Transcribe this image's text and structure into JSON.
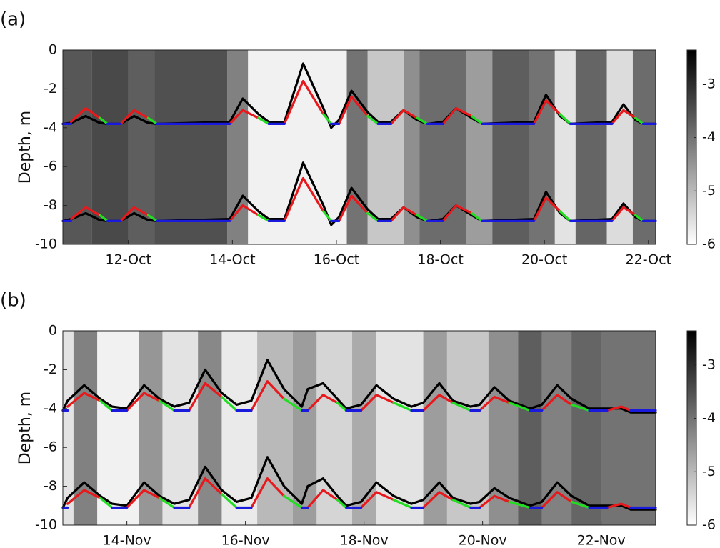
{
  "chart_data": [
    {
      "type": "line",
      "panel_label": "(a)",
      "ylabel": "Depth, m",
      "xlim": [
        10.74,
        22.14
      ],
      "xticks": [
        {
          "value": 12,
          "label": "12-Oct"
        },
        {
          "value": 14,
          "label": "14-Oct"
        },
        {
          "value": 16,
          "label": "16-Oct"
        },
        {
          "value": 18,
          "label": "18-Oct"
        },
        {
          "value": 20,
          "label": "20-Oct"
        },
        {
          "value": 22,
          "label": "22-Oct"
        }
      ],
      "ylim": [
        -10,
        0
      ],
      "yticks": [
        0,
        -2,
        -4,
        -6,
        -8,
        -10
      ],
      "clim": [
        -6,
        -2.36
      ],
      "cticks": [
        -3,
        -4,
        -5,
        -6
      ],
      "field": {
        "bins": [
          10.74,
          11.3,
          12.0,
          12.5,
          13.9,
          14.3,
          16.2,
          16.6,
          17.3,
          17.6,
          18.5,
          19.0,
          19.7,
          20.2,
          20.6,
          21.2,
          21.7,
          22.14
        ],
        "values": [
          -3.6,
          -3.4,
          -3.7,
          -3.5,
          -4.2,
          -5.8,
          -4.0,
          -5.2,
          -4.4,
          -3.9,
          -4.6,
          -3.7,
          -4.0,
          -5.6,
          -3.8,
          -5.5,
          -3.9
        ]
      },
      "x": [
        10.74,
        10.9,
        11.18,
        11.45,
        11.6,
        11.85,
        12.11,
        12.38,
        12.55,
        13.95,
        14.2,
        14.5,
        14.7,
        15.0,
        15.36,
        15.75,
        15.9,
        16.05,
        16.29,
        16.6,
        16.8,
        17.05,
        17.29,
        17.55,
        17.75,
        18.05,
        18.3,
        18.6,
        18.8,
        19.8,
        20.03,
        20.3,
        20.5,
        21.3,
        21.52,
        21.75,
        21.9,
        22.14
      ],
      "series": [
        {
          "color": "#000000",
          "values": [
            -3.8,
            -3.75,
            -3.4,
            -3.75,
            -3.8,
            -3.8,
            -3.4,
            -3.75,
            -3.8,
            -3.7,
            -2.5,
            -3.3,
            -3.7,
            -3.7,
            -0.7,
            -3.0,
            -4.0,
            -3.6,
            -2.1,
            -3.2,
            -3.7,
            -3.7,
            -3.1,
            -3.6,
            -3.8,
            -3.7,
            -3.0,
            -3.5,
            -3.8,
            -3.7,
            -2.3,
            -3.4,
            -3.8,
            -3.7,
            -2.8,
            -3.6,
            -3.8,
            -3.8
          ]
        },
        {
          "color": "#000000",
          "values": [
            -8.8,
            -8.7,
            -8.4,
            -8.75,
            -8.8,
            -8.8,
            -8.4,
            -8.75,
            -8.8,
            -8.7,
            -7.5,
            -8.3,
            -8.7,
            -8.7,
            -5.8,
            -8.0,
            -9.0,
            -8.6,
            -7.1,
            -8.2,
            -8.7,
            -8.7,
            -8.1,
            -8.6,
            -8.8,
            -8.7,
            -8.0,
            -8.5,
            -8.8,
            -8.7,
            -7.3,
            -8.4,
            -8.8,
            -8.7,
            -7.9,
            -8.6,
            -8.8,
            -8.8
          ]
        },
        {
          "color": "#e8191c",
          "values": [
            null,
            -3.7,
            -3.0,
            -3.5,
            null,
            -3.8,
            -3.1,
            -3.5,
            null,
            -3.8,
            -3.1,
            -3.5,
            null,
            -3.8,
            -1.6,
            -3.3,
            null,
            -3.8,
            -2.4,
            -3.4,
            null,
            -3.8,
            -3.1,
            -3.5,
            null,
            -3.8,
            -3.0,
            -3.4,
            null,
            -3.8,
            -2.6,
            -3.3,
            null,
            -3.8,
            -3.1,
            -3.5,
            null,
            null
          ]
        },
        {
          "color": "#e8191c",
          "values": [
            null,
            -8.7,
            -8.1,
            -8.5,
            null,
            -8.8,
            -8.1,
            -8.5,
            null,
            -8.8,
            -8.0,
            -8.5,
            null,
            -8.8,
            -6.6,
            -8.3,
            null,
            -8.8,
            -7.5,
            -8.4,
            null,
            -8.8,
            -8.1,
            -8.5,
            null,
            -8.8,
            -8.0,
            -8.4,
            null,
            -8.8,
            -7.6,
            -8.3,
            null,
            -8.8,
            -8.1,
            -8.5,
            null,
            null
          ]
        },
        {
          "color": "#22dd22",
          "values": [
            null,
            null,
            null,
            -3.5,
            -3.8,
            null,
            null,
            -3.5,
            -3.8,
            null,
            null,
            -3.5,
            -3.8,
            null,
            null,
            -3.3,
            -3.8,
            null,
            null,
            -3.4,
            -3.8,
            null,
            null,
            -3.5,
            -3.8,
            null,
            null,
            -3.4,
            -3.8,
            null,
            null,
            -3.3,
            -3.8,
            null,
            null,
            -3.5,
            -3.8,
            null
          ]
        },
        {
          "color": "#22dd22",
          "values": [
            null,
            null,
            null,
            -8.5,
            -8.8,
            null,
            null,
            -8.5,
            -8.8,
            null,
            null,
            -8.5,
            -8.8,
            null,
            null,
            -8.3,
            -8.8,
            null,
            null,
            -8.4,
            -8.8,
            null,
            null,
            -8.5,
            -8.8,
            null,
            null,
            -8.4,
            -8.8,
            null,
            null,
            -8.3,
            -8.8,
            null,
            null,
            -8.5,
            -8.8,
            null
          ]
        },
        {
          "color": "#1a1adf",
          "values": [
            -3.8,
            -3.8,
            null,
            null,
            -3.8,
            -3.8,
            null,
            null,
            -3.8,
            -3.8,
            null,
            null,
            -3.8,
            -3.8,
            null,
            null,
            -3.8,
            -3.8,
            null,
            null,
            -3.8,
            -3.8,
            null,
            null,
            -3.8,
            -3.8,
            null,
            null,
            -3.8,
            -3.8,
            null,
            null,
            -3.8,
            -3.8,
            null,
            null,
            -3.8,
            -3.8
          ]
        },
        {
          "color": "#1a1adf",
          "values": [
            -8.8,
            -8.8,
            null,
            null,
            -8.8,
            -8.8,
            null,
            null,
            -8.8,
            -8.8,
            null,
            null,
            -8.8,
            -8.8,
            null,
            null,
            -8.8,
            -8.8,
            null,
            null,
            -8.8,
            -8.8,
            null,
            null,
            -8.8,
            -8.8,
            null,
            null,
            -8.8,
            -8.8,
            null,
            null,
            -8.8,
            -8.8,
            null,
            null,
            -8.8,
            -8.8
          ]
        }
      ]
    },
    {
      "type": "line",
      "panel_label": "(b)",
      "ylabel": "Depth, m",
      "xlim": [
        12.92,
        22.92
      ],
      "xticks": [
        {
          "value": 14,
          "label": "14-Nov"
        },
        {
          "value": 16,
          "label": "16-Nov"
        },
        {
          "value": 18,
          "label": "18-Nov"
        },
        {
          "value": 20,
          "label": "20-Nov"
        },
        {
          "value": 22,
          "label": "22-Nov"
        }
      ],
      "ylim": [
        -10,
        0
      ],
      "yticks": [
        0,
        -2,
        -4,
        -6,
        -8,
        -10
      ],
      "clim": [
        -6,
        -2.36
      ],
      "cticks": [
        -3,
        -4,
        -5,
        -6
      ],
      "field": {
        "bins": [
          12.92,
          13.1,
          13.5,
          14.2,
          14.6,
          15.2,
          15.6,
          16.2,
          16.8,
          17.2,
          17.8,
          18.2,
          19.0,
          19.4,
          20.1,
          20.6,
          21.0,
          21.5,
          22.0,
          22.92
        ],
        "values": [
          -5.6,
          -4.2,
          -5.8,
          -4.5,
          -5.6,
          -4.3,
          -5.7,
          -5.0,
          -4.6,
          -5.4,
          -4.8,
          -5.6,
          -4.6,
          -5.2,
          -4.4,
          -3.7,
          -4.2,
          -3.8,
          -4.0
        ]
      },
      "x": [
        12.92,
        13.0,
        13.28,
        13.55,
        13.75,
        14.0,
        14.29,
        14.55,
        14.8,
        15.05,
        15.32,
        15.6,
        15.85,
        16.1,
        16.37,
        16.65,
        16.95,
        17.05,
        17.31,
        17.55,
        17.7,
        17.95,
        18.21,
        18.5,
        18.8,
        19.0,
        19.27,
        19.5,
        19.8,
        19.95,
        20.2,
        20.45,
        20.8,
        21.0,
        21.26,
        21.5,
        21.8,
        22.1,
        22.34,
        22.5,
        22.92
      ],
      "series": [
        {
          "color": "#000000",
          "values": [
            -4.1,
            -3.6,
            -2.8,
            -3.5,
            -3.9,
            -4.0,
            -2.8,
            -3.5,
            -3.9,
            -3.7,
            -2.0,
            -3.2,
            -3.8,
            -3.6,
            -1.5,
            -3.0,
            -3.9,
            -3.0,
            -2.7,
            -3.5,
            -4.0,
            -3.8,
            -2.8,
            -3.5,
            -3.9,
            -3.7,
            -2.7,
            -3.6,
            -3.9,
            -3.8,
            -2.9,
            -3.6,
            -4.0,
            -3.8,
            -2.8,
            -3.5,
            -4.0,
            -4.0,
            -4.0,
            -4.2,
            -4.2
          ]
        },
        {
          "color": "#000000",
          "values": [
            -9.1,
            -8.6,
            -7.8,
            -8.5,
            -8.9,
            -9.0,
            -7.8,
            -8.5,
            -8.9,
            -8.7,
            -7.0,
            -8.2,
            -8.8,
            -8.6,
            -6.5,
            -8.0,
            -8.9,
            -8.0,
            -7.6,
            -8.5,
            -9.0,
            -8.8,
            -7.8,
            -8.5,
            -8.9,
            -8.7,
            -7.8,
            -8.6,
            -8.9,
            -8.8,
            -8.1,
            -8.6,
            -9.0,
            -8.8,
            -7.8,
            -8.5,
            -9.0,
            -9.0,
            -9.0,
            -9.2,
            -9.2
          ]
        },
        {
          "color": "#e8191c",
          "values": [
            null,
            -3.9,
            -3.2,
            -3.6,
            null,
            -4.1,
            -3.2,
            -3.6,
            null,
            -4.1,
            -2.7,
            -3.4,
            null,
            -4.1,
            -2.6,
            -3.5,
            null,
            -4.1,
            -3.3,
            -3.7,
            null,
            -4.1,
            -3.3,
            -3.7,
            null,
            -4.1,
            -3.3,
            -3.7,
            null,
            -4.1,
            -3.4,
            -3.7,
            null,
            -4.1,
            -3.3,
            -3.8,
            null,
            -4.1,
            -3.9,
            -4.1,
            null
          ]
        },
        {
          "color": "#e8191c",
          "values": [
            null,
            -8.9,
            -8.2,
            -8.6,
            null,
            -9.1,
            -8.2,
            -8.6,
            null,
            -9.1,
            -7.6,
            -8.4,
            null,
            -9.1,
            -7.6,
            -8.5,
            null,
            -9.1,
            -8.2,
            -8.7,
            null,
            -9.1,
            -8.3,
            -8.7,
            null,
            -9.1,
            -8.3,
            -8.7,
            null,
            -9.1,
            -8.5,
            -8.8,
            null,
            -9.1,
            -8.3,
            -8.8,
            null,
            -9.1,
            -8.9,
            -9.1,
            null
          ]
        },
        {
          "color": "#22dd22",
          "values": [
            null,
            null,
            null,
            -3.6,
            -4.1,
            null,
            null,
            -3.6,
            -4.1,
            null,
            null,
            -3.4,
            -4.1,
            null,
            null,
            -3.5,
            -4.1,
            null,
            null,
            -3.7,
            -4.1,
            null,
            null,
            -3.7,
            -4.1,
            null,
            null,
            -3.7,
            -4.1,
            null,
            null,
            -3.7,
            -4.1,
            null,
            null,
            -3.8,
            -4.1,
            null,
            null,
            null,
            null
          ]
        },
        {
          "color": "#22dd22",
          "values": [
            null,
            null,
            null,
            -8.6,
            -9.1,
            null,
            null,
            -8.6,
            -9.1,
            null,
            null,
            -8.4,
            -9.1,
            null,
            null,
            -8.5,
            -9.1,
            null,
            null,
            -8.7,
            -9.1,
            null,
            null,
            -8.7,
            -9.1,
            null,
            null,
            -8.7,
            -9.1,
            null,
            null,
            -8.8,
            -9.1,
            null,
            null,
            -8.8,
            -9.1,
            null,
            null,
            null,
            null
          ]
        },
        {
          "color": "#1a1adf",
          "values": [
            -4.1,
            -4.1,
            null,
            null,
            -4.1,
            -4.1,
            null,
            null,
            -4.1,
            -4.1,
            null,
            null,
            -4.1,
            -4.1,
            null,
            null,
            -4.1,
            -4.1,
            null,
            null,
            -4.1,
            -4.1,
            null,
            null,
            -4.1,
            -4.1,
            null,
            null,
            -4.1,
            -4.1,
            null,
            null,
            -4.1,
            -4.1,
            null,
            null,
            -4.1,
            -4.1,
            null,
            -4.1,
            -4.1
          ]
        },
        {
          "color": "#1a1adf",
          "values": [
            -9.1,
            -9.1,
            null,
            null,
            -9.1,
            -9.1,
            null,
            null,
            -9.1,
            -9.1,
            null,
            null,
            -9.1,
            -9.1,
            null,
            null,
            -9.1,
            -9.1,
            null,
            null,
            -9.1,
            -9.1,
            null,
            null,
            -9.1,
            -9.1,
            null,
            null,
            -9.1,
            -9.1,
            null,
            null,
            -9.1,
            -9.1,
            null,
            null,
            -9.1,
            -9.1,
            null,
            -9.1,
            -9.1
          ]
        }
      ]
    }
  ]
}
